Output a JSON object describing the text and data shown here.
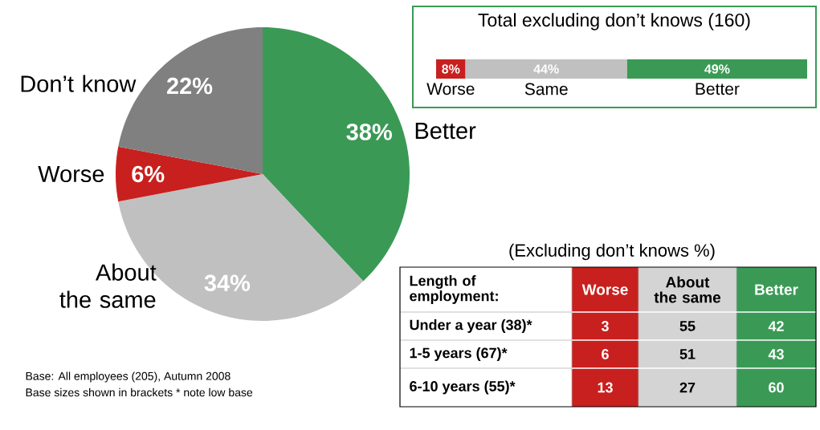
{
  "chart_data": [
    {
      "type": "pie",
      "categories": [
        "Better",
        "About the same",
        "Worse",
        "Don’t know"
      ],
      "values": [
        38,
        34,
        6,
        22
      ],
      "colors": [
        "#3a9a55",
        "#c0c0c0",
        "#c8201e",
        "#808080"
      ],
      "value_labels": [
        "38%",
        "34%",
        "6%",
        "22%"
      ],
      "annotations": [
        "Base: All employees (205), Autumn 2008",
        "Base sizes shown in brackets * note low base"
      ]
    },
    {
      "type": "bar",
      "orientation": "horizontal",
      "stacked": true,
      "title": "Total excluding don’t knows (160)",
      "categories": [
        null
      ],
      "series": [
        {
          "name": "Worse",
          "color": "#c8201e",
          "values": [
            8
          ],
          "value_labels": [
            "8%"
          ]
        },
        {
          "name": "Same",
          "color": "#c0c0c0",
          "values": [
            44
          ],
          "value_labels": [
            "44%"
          ]
        },
        {
          "name": "Better",
          "color": "#3a9a55",
          "values": [
            49
          ],
          "value_labels": [
            "49%"
          ]
        }
      ]
    },
    {
      "type": "other",
      "title": "(Excluding don’t knows %)",
      "ylabel": "Length of employment:",
      "categories": [
        "Under a year (38)*",
        "1-5 years (67)*",
        "6-10 years (55)*"
      ],
      "data_labels": true,
      "series": [
        {
          "name": "Worse",
          "color": "#c8201e",
          "values": [
            3,
            6,
            13
          ]
        },
        {
          "name": "About the same",
          "color": "#d4d4d4",
          "values": [
            55,
            51,
            27
          ]
        },
        {
          "name": "Better",
          "color": "#3a9a55",
          "values": [
            42,
            43,
            60
          ]
        }
      ]
    }
  ]
}
